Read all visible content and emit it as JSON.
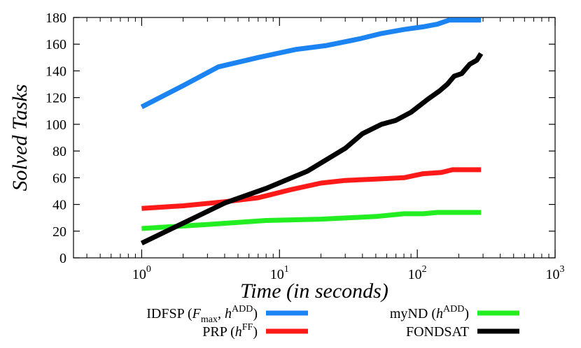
{
  "chart_data": {
    "type": "line",
    "xlabel": "Time (in seconds)",
    "ylabel": "Solved Tasks",
    "x_scale": "log",
    "xlim": [
      0.32,
      1000
    ],
    "ylim": [
      0,
      180
    ],
    "x_ticks": [
      {
        "value": 1,
        "base": "10",
        "exp": "0"
      },
      {
        "value": 10,
        "base": "10",
        "exp": "1"
      },
      {
        "value": 100,
        "base": "10",
        "exp": "2"
      },
      {
        "value": 1000,
        "base": "10",
        "exp": "3"
      }
    ],
    "y_ticks": [
      "0",
      "20",
      "40",
      "60",
      "80",
      "100",
      "120",
      "140",
      "160",
      "180"
    ],
    "grid": false,
    "legend_position": "bottom",
    "series": [
      {
        "name": "IDFSP (F_max, h^ADD)",
        "legend_parts": [
          "IDFSP (",
          "F",
          "max",
          ", ",
          "h",
          "ADD",
          ")"
        ],
        "color": "#1b84f2",
        "points": [
          [
            1,
            113
          ],
          [
            2,
            129
          ],
          [
            3.6,
            143
          ],
          [
            7,
            150
          ],
          [
            13,
            156
          ],
          [
            22,
            159
          ],
          [
            38,
            164
          ],
          [
            55,
            168
          ],
          [
            80,
            171
          ],
          [
            110,
            173
          ],
          [
            140,
            175
          ],
          [
            170,
            178
          ],
          [
            290,
            178
          ]
        ]
      },
      {
        "name": "PRP (h^FF)",
        "legend_parts": [
          "PRP (",
          "h",
          "FF",
          ")"
        ],
        "color": "#ff1a1a",
        "points": [
          [
            1,
            37
          ],
          [
            2,
            39
          ],
          [
            4,
            42
          ],
          [
            7,
            45
          ],
          [
            12,
            51
          ],
          [
            20,
            56
          ],
          [
            30,
            58
          ],
          [
            50,
            59
          ],
          [
            80,
            60
          ],
          [
            110,
            63
          ],
          [
            150,
            64
          ],
          [
            180,
            66
          ],
          [
            290,
            66
          ]
        ]
      },
      {
        "name": "myND (h^ADD)",
        "legend_parts": [
          "myND (",
          "h",
          "ADD",
          ")"
        ],
        "color": "#22ee22",
        "points": [
          [
            1,
            22
          ],
          [
            3,
            25
          ],
          [
            8,
            28
          ],
          [
            20,
            29
          ],
          [
            50,
            31
          ],
          [
            80,
            33
          ],
          [
            110,
            33
          ],
          [
            140,
            34
          ],
          [
            290,
            34
          ]
        ]
      },
      {
        "name": "FONDSAT",
        "legend_parts": [
          "FONDSAT"
        ],
        "color": "#000000",
        "points": [
          [
            1,
            11
          ],
          [
            2,
            26
          ],
          [
            4,
            41
          ],
          [
            8,
            52
          ],
          [
            16,
            65
          ],
          [
            30,
            82
          ],
          [
            40,
            93
          ],
          [
            55,
            100
          ],
          [
            70,
            103
          ],
          [
            90,
            109
          ],
          [
            120,
            119
          ],
          [
            145,
            125
          ],
          [
            165,
            130
          ],
          [
            185,
            136
          ],
          [
            210,
            138
          ],
          [
            240,
            145
          ],
          [
            270,
            148
          ],
          [
            290,
            153
          ]
        ]
      }
    ]
  }
}
